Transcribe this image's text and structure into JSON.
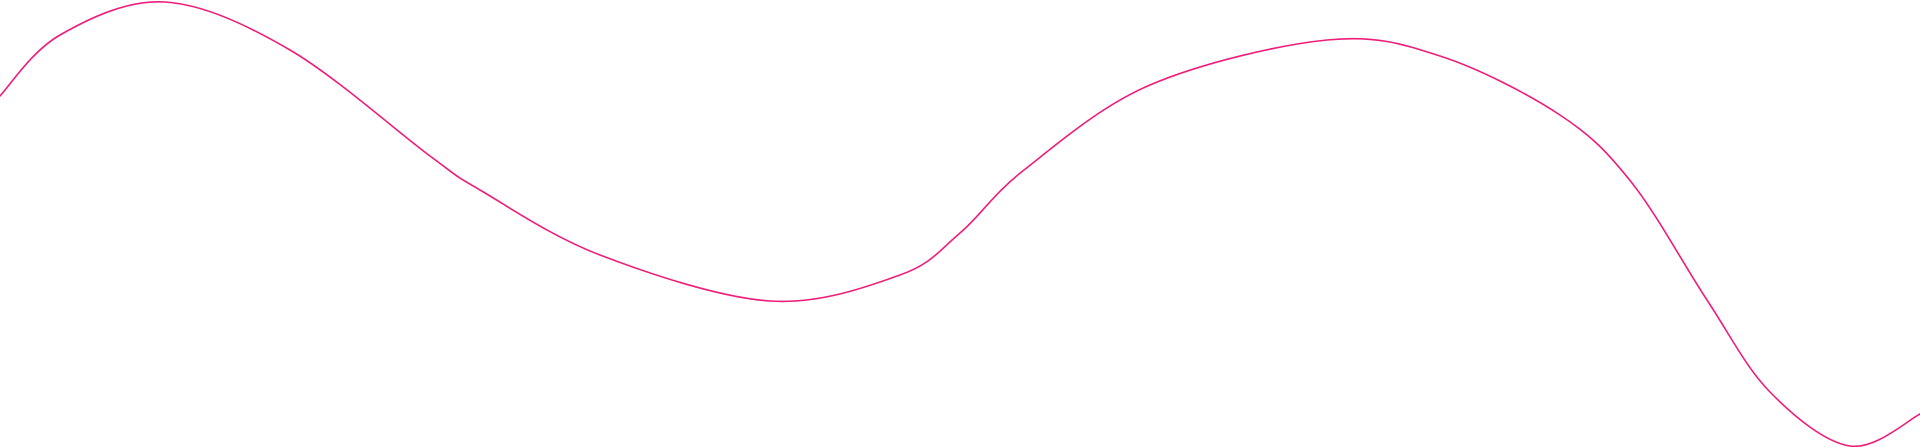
{
  "decoration": {
    "type": "wave-line",
    "stroke_color": "#ED1E79",
    "background_color": "#FFFFFF"
  }
}
